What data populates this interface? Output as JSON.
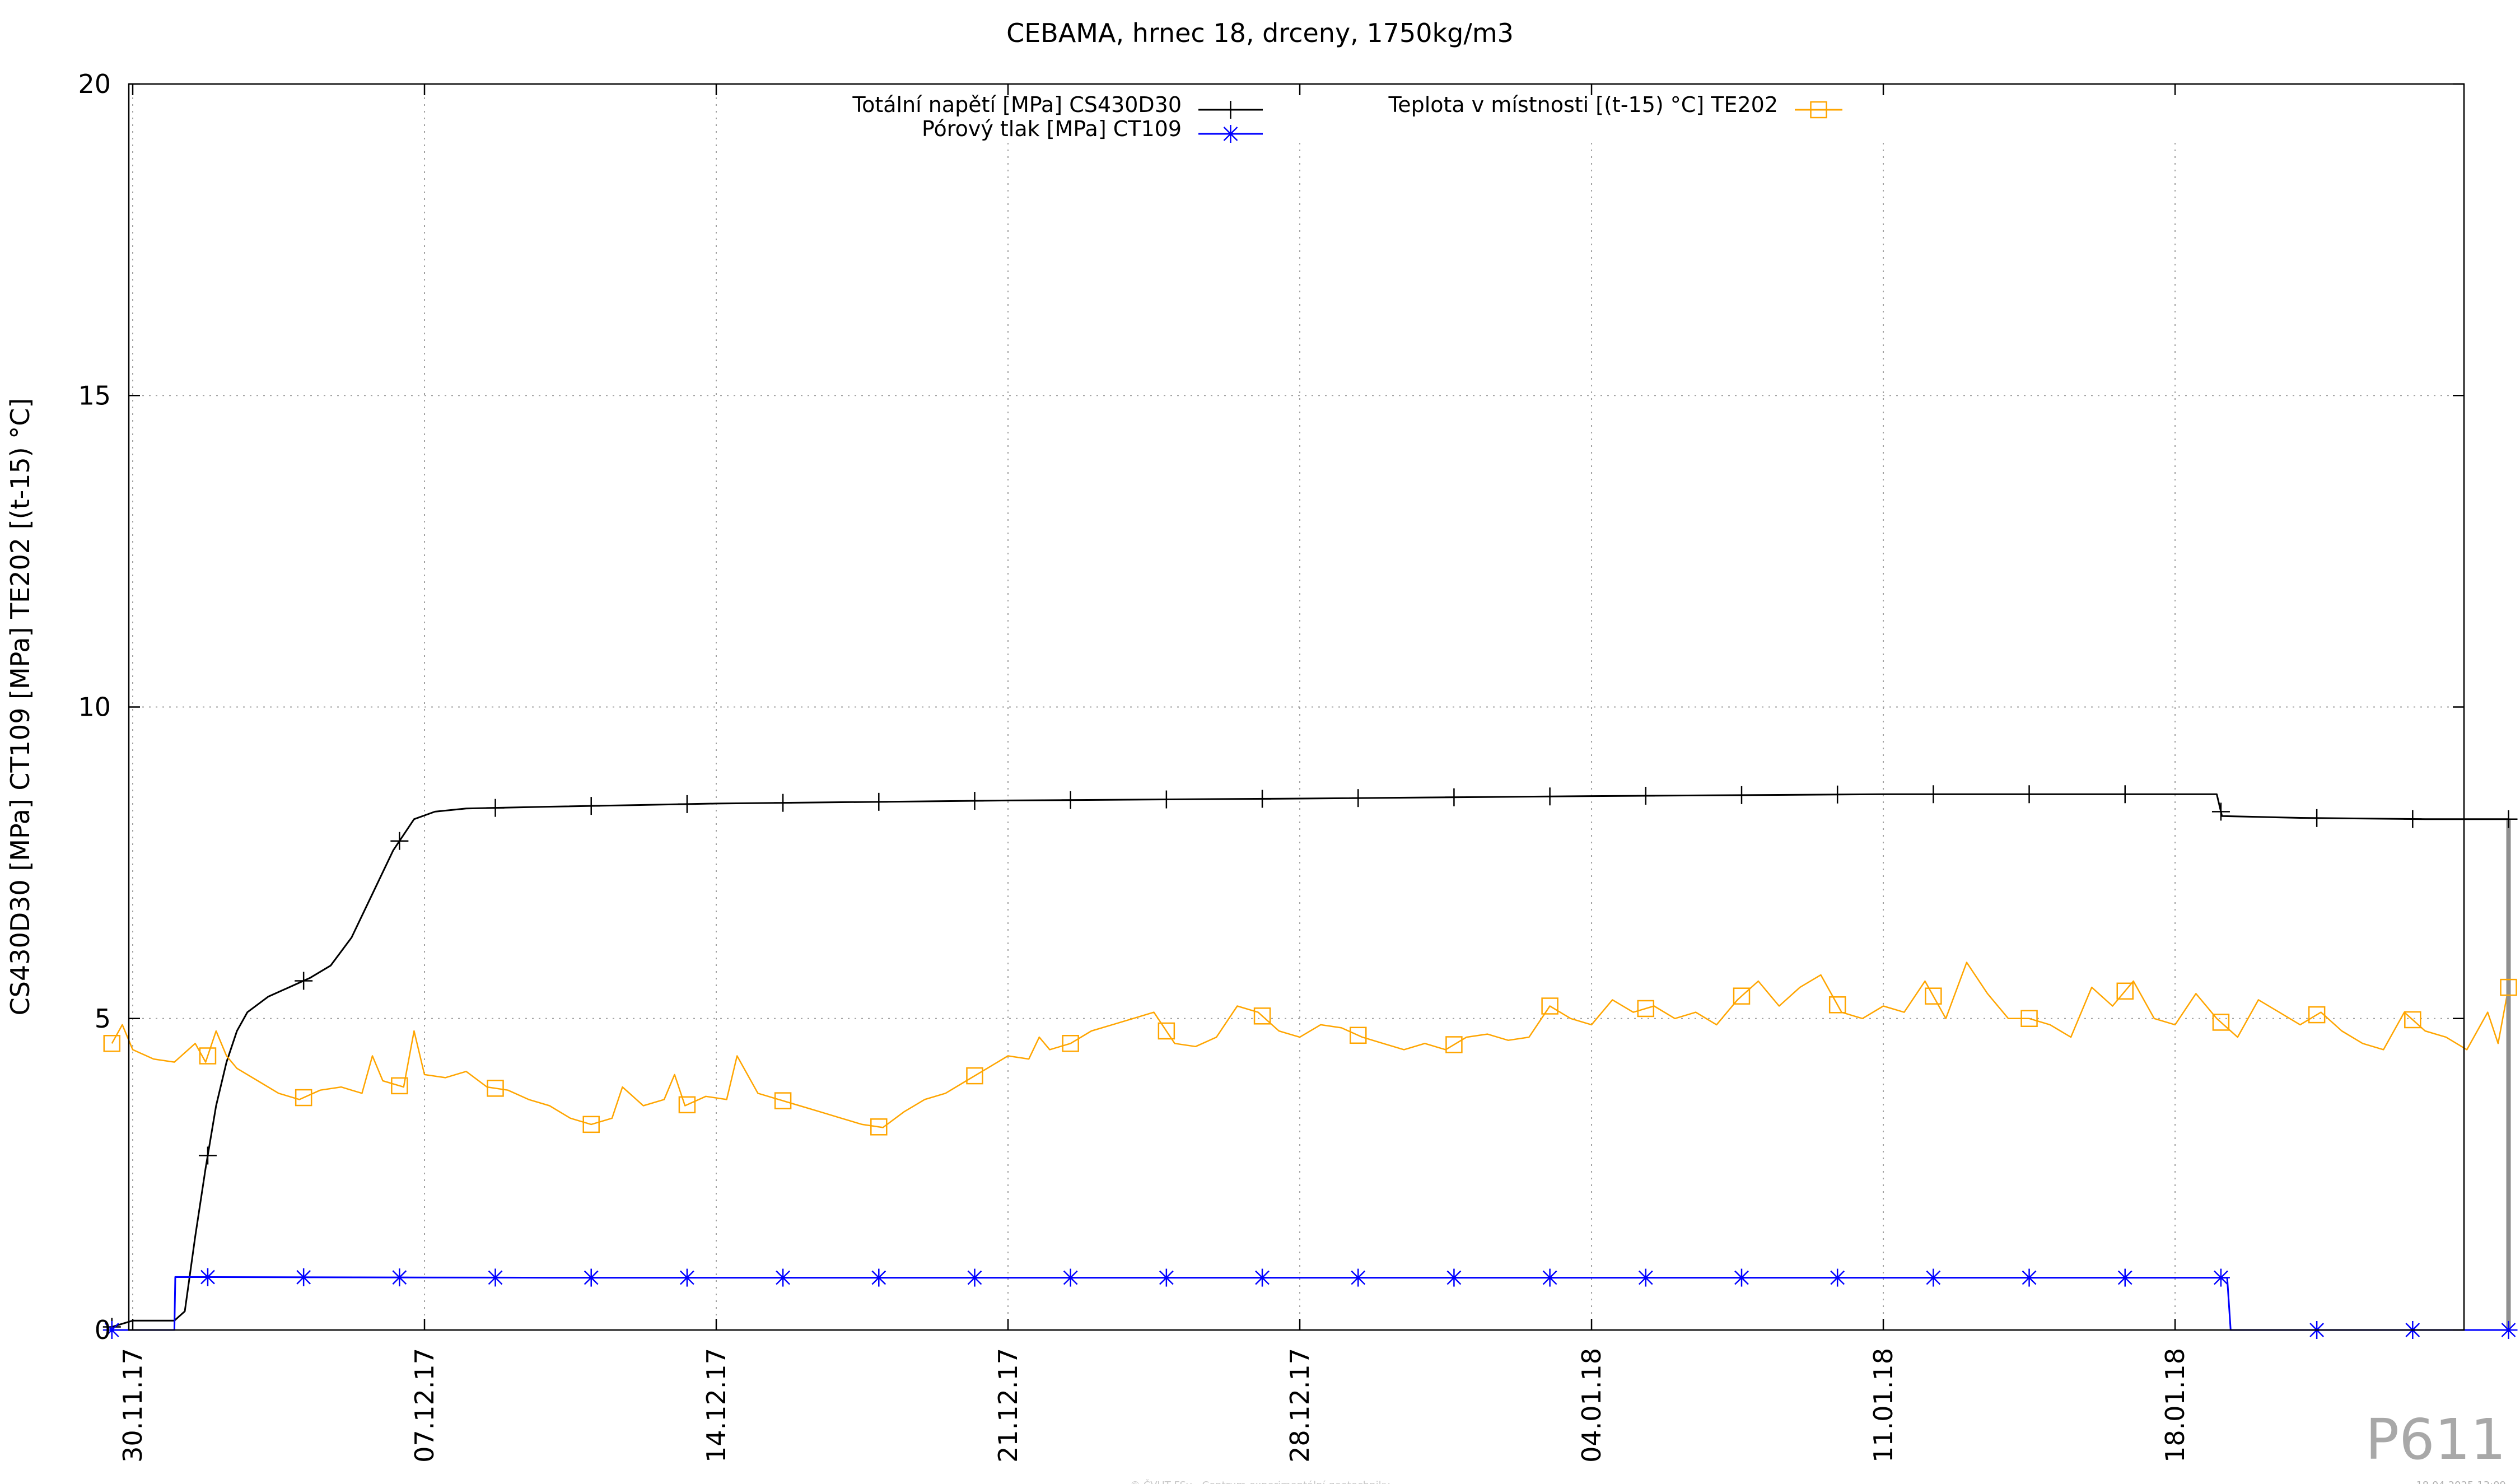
{
  "chart_data": {
    "type": "line",
    "title": "CEBAMA, hrnec 18, drceny, 1750kg/m3",
    "ylabel": "CS430D30 [MPa] CT109 [MPa] TE202 [(t-15) °C]",
    "xlabel": "",
    "ylim": [
      0,
      20
    ],
    "yticks": [
      0,
      5,
      10,
      15,
      20
    ],
    "xlim": [
      "2017-11-30",
      "2018-01-26"
    ],
    "xticks": [
      {
        "date": "2017-11-30",
        "label": "30.11.17"
      },
      {
        "date": "2017-12-07",
        "label": "07.12.17"
      },
      {
        "date": "2017-12-14",
        "label": "14.12.17"
      },
      {
        "date": "2017-12-21",
        "label": "21.12.17"
      },
      {
        "date": "2017-12-28",
        "label": "28.12.17"
      },
      {
        "date": "2018-01-04",
        "label": "04.01.18"
      },
      {
        "date": "2018-01-11",
        "label": "11.01.18"
      },
      {
        "date": "2018-01-18",
        "label": "18.01.18"
      }
    ],
    "grid": true,
    "legend_position": "top",
    "series": [
      {
        "name": "Totální napětí [MPa] CS430D30",
        "color": "#000000",
        "marker": "plus",
        "points": [
          [
            "2017-11-29T12:00",
            0.05
          ],
          [
            "2017-11-30T00:00",
            0.15
          ],
          [
            "2017-11-30T12:00",
            0.15
          ],
          [
            "2017-12-01T00:00",
            0.15
          ],
          [
            "2017-12-01T06:00",
            0.3
          ],
          [
            "2017-12-01T12:00",
            1.5
          ],
          [
            "2017-12-01T18:00",
            2.6
          ],
          [
            "2017-12-02T00:00",
            3.6
          ],
          [
            "2017-12-02T06:00",
            4.3
          ],
          [
            "2017-12-02T12:00",
            4.8
          ],
          [
            "2017-12-02T18:00",
            5.1
          ],
          [
            "2017-12-03T06:00",
            5.35
          ],
          [
            "2017-12-03T18:00",
            5.5
          ],
          [
            "2017-12-04T06:00",
            5.65
          ],
          [
            "2017-12-04T18:00",
            5.85
          ],
          [
            "2017-12-05T06:00",
            6.3
          ],
          [
            "2017-12-05T18:00",
            7.0
          ],
          [
            "2017-12-06T06:00",
            7.7
          ],
          [
            "2017-12-06T18:00",
            8.2
          ],
          [
            "2017-12-07T06:00",
            8.32
          ],
          [
            "2017-12-08T00:00",
            8.37
          ],
          [
            "2017-12-10T00:00",
            8.4
          ],
          [
            "2017-12-14T00:00",
            8.45
          ],
          [
            "2017-12-21T00:00",
            8.5
          ],
          [
            "2017-12-28T00:00",
            8.53
          ],
          [
            "2018-01-04T00:00",
            8.57
          ],
          [
            "2018-01-11T00:00",
            8.6
          ],
          [
            "2018-01-18T00:00",
            8.6
          ],
          [
            "2018-01-19T00:00",
            8.6
          ],
          [
            "2018-01-19T03:00",
            8.25
          ],
          [
            "2018-01-21T00:00",
            8.22
          ],
          [
            "2018-01-24T00:00",
            8.2
          ],
          [
            "2018-01-25T18:00",
            8.2
          ],
          [
            "2018-01-26T00:00",
            8.2
          ]
        ]
      },
      {
        "name": "Pórový tlak [MPa] CT109",
        "color": "#0000ff",
        "marker": "star",
        "points": [
          [
            "2017-11-29T12:00",
            0.0
          ],
          [
            "2017-12-01T00:00",
            0.0
          ],
          [
            "2017-12-01T00:30",
            0.85
          ],
          [
            "2017-12-10T00:00",
            0.84
          ],
          [
            "2017-12-25T00:00",
            0.84
          ],
          [
            "2018-01-10T00:00",
            0.84
          ],
          [
            "2018-01-19T06:00",
            0.84
          ],
          [
            "2018-01-19T08:00",
            0.0
          ],
          [
            "2018-01-26T00:00",
            0.0
          ]
        ]
      },
      {
        "name": "Teplota v místnosti [(t-15) °C] TE202",
        "color": "#ffa500",
        "marker": "square",
        "points": [
          [
            "2017-11-29T12:00",
            4.6
          ],
          [
            "2017-11-29T18:00",
            4.9
          ],
          [
            "2017-11-30T00:00",
            4.5
          ],
          [
            "2017-11-30T12:00",
            4.35
          ],
          [
            "2017-12-01T00:00",
            4.3
          ],
          [
            "2017-12-01T12:00",
            4.6
          ],
          [
            "2017-12-01T18:00",
            4.3
          ],
          [
            "2017-12-02T00:00",
            4.8
          ],
          [
            "2017-12-02T06:00",
            4.4
          ],
          [
            "2017-12-02T12:00",
            4.2
          ],
          [
            "2017-12-03T00:00",
            4.0
          ],
          [
            "2017-12-03T12:00",
            3.8
          ],
          [
            "2017-12-04T00:00",
            3.7
          ],
          [
            "2017-12-04T12:00",
            3.85
          ],
          [
            "2017-12-05T00:00",
            3.9
          ],
          [
            "2017-12-05T12:00",
            3.8
          ],
          [
            "2017-12-05T18:00",
            4.4
          ],
          [
            "2017-12-06T00:00",
            4.0
          ],
          [
            "2017-12-06T12:00",
            3.9
          ],
          [
            "2017-12-06T18:00",
            4.8
          ],
          [
            "2017-12-07T00:00",
            4.1
          ],
          [
            "2017-12-07T12:00",
            4.05
          ],
          [
            "2017-12-08T00:00",
            4.15
          ],
          [
            "2017-12-08T12:00",
            3.9
          ],
          [
            "2017-12-09T00:00",
            3.85
          ],
          [
            "2017-12-09T12:00",
            3.7
          ],
          [
            "2017-12-10T00:00",
            3.6
          ],
          [
            "2017-12-10T12:00",
            3.4
          ],
          [
            "2017-12-11T00:00",
            3.3
          ],
          [
            "2017-12-11T12:00",
            3.4
          ],
          [
            "2017-12-11T18:00",
            3.9
          ],
          [
            "2017-12-12T06:00",
            3.6
          ],
          [
            "2017-12-12T18:00",
            3.7
          ],
          [
            "2017-12-13T00:00",
            4.1
          ],
          [
            "2017-12-13T06:00",
            3.6
          ],
          [
            "2017-12-13T18:00",
            3.75
          ],
          [
            "2017-12-14T06:00",
            3.7
          ],
          [
            "2017-12-14T12:00",
            4.4
          ],
          [
            "2017-12-15T00:00",
            3.8
          ],
          [
            "2017-12-15T12:00",
            3.7
          ],
          [
            "2017-12-16T00:00",
            3.6
          ],
          [
            "2017-12-16T12:00",
            3.5
          ],
          [
            "2017-12-17T00:00",
            3.4
          ],
          [
            "2017-12-17T12:00",
            3.3
          ],
          [
            "2017-12-18T00:00",
            3.25
          ],
          [
            "2017-12-18T12:00",
            3.5
          ],
          [
            "2017-12-19T00:00",
            3.7
          ],
          [
            "2017-12-19T12:00",
            3.8
          ],
          [
            "2017-12-20T00:00",
            4.0
          ],
          [
            "2017-12-20T12:00",
            4.2
          ],
          [
            "2017-12-21T00:00",
            4.4
          ],
          [
            "2017-12-21T12:00",
            4.35
          ],
          [
            "2017-12-21T18:00",
            4.7
          ],
          [
            "2017-12-22T00:00",
            4.5
          ],
          [
            "2017-12-22T12:00",
            4.6
          ],
          [
            "2017-12-23T00:00",
            4.8
          ],
          [
            "2017-12-23T12:00",
            4.9
          ],
          [
            "2017-12-24T00:00",
            5.0
          ],
          [
            "2017-12-24T12:00",
            5.1
          ],
          [
            "2017-12-25T00:00",
            4.6
          ],
          [
            "2017-12-25T12:00",
            4.55
          ],
          [
            "2017-12-26T00:00",
            4.7
          ],
          [
            "2017-12-26T12:00",
            5.2
          ],
          [
            "2017-12-27T00:00",
            5.1
          ],
          [
            "2017-12-27T12:00",
            4.8
          ],
          [
            "2017-12-28T00:00",
            4.7
          ],
          [
            "2017-12-28T12:00",
            4.9
          ],
          [
            "2017-12-29T00:00",
            4.85
          ],
          [
            "2017-12-29T12:00",
            4.7
          ],
          [
            "2017-12-30T00:00",
            4.6
          ],
          [
            "2017-12-30T12:00",
            4.5
          ],
          [
            "2017-12-31T00:00",
            4.6
          ],
          [
            "2017-12-31T12:00",
            4.5
          ],
          [
            "2018-01-01T00:00",
            4.7
          ],
          [
            "2018-01-01T12:00",
            4.75
          ],
          [
            "2018-01-02T00:00",
            4.65
          ],
          [
            "2018-01-02T12:00",
            4.7
          ],
          [
            "2018-01-03T00:00",
            5.2
          ],
          [
            "2018-01-03T12:00",
            5.0
          ],
          [
            "2018-01-04T00:00",
            4.9
          ],
          [
            "2018-01-04T12:00",
            5.3
          ],
          [
            "2018-01-05T00:00",
            5.1
          ],
          [
            "2018-01-05T12:00",
            5.2
          ],
          [
            "2018-01-06T00:00",
            5.0
          ],
          [
            "2018-01-06T12:00",
            5.1
          ],
          [
            "2018-01-07T00:00",
            4.9
          ],
          [
            "2018-01-07T12:00",
            5.3
          ],
          [
            "2018-01-08T00:00",
            5.6
          ],
          [
            "2018-01-08T12:00",
            5.2
          ],
          [
            "2018-01-09T00:00",
            5.5
          ],
          [
            "2018-01-09T12:00",
            5.7
          ],
          [
            "2018-01-10T00:00",
            5.1
          ],
          [
            "2018-01-10T12:00",
            5.0
          ],
          [
            "2018-01-11T00:00",
            5.2
          ],
          [
            "2018-01-11T12:00",
            5.1
          ],
          [
            "2018-01-12T00:00",
            5.6
          ],
          [
            "2018-01-12T12:00",
            5.0
          ],
          [
            "2018-01-13T00:00",
            5.9
          ],
          [
            "2018-01-13T12:00",
            5.4
          ],
          [
            "2018-01-14T00:00",
            5.0
          ],
          [
            "2018-01-14T12:00",
            5.0
          ],
          [
            "2018-01-15T00:00",
            4.9
          ],
          [
            "2018-01-15T12:00",
            4.7
          ],
          [
            "2018-01-16T00:00",
            5.5
          ],
          [
            "2018-01-16T12:00",
            5.2
          ],
          [
            "2018-01-17T00:00",
            5.6
          ],
          [
            "2018-01-17T12:00",
            5.0
          ],
          [
            "2018-01-18T00:00",
            4.9
          ],
          [
            "2018-01-18T12:00",
            5.4
          ],
          [
            "2018-01-19T00:00",
            5.0
          ],
          [
            "2018-01-19T12:00",
            4.7
          ],
          [
            "2018-01-20T00:00",
            5.3
          ],
          [
            "2018-01-20T12:00",
            5.1
          ],
          [
            "2018-01-21T00:00",
            4.9
          ],
          [
            "2018-01-21T12:00",
            5.1
          ],
          [
            "2018-01-22T00:00",
            4.8
          ],
          [
            "2018-01-22T12:00",
            4.6
          ],
          [
            "2018-01-23T00:00",
            4.5
          ],
          [
            "2018-01-23T12:00",
            5.1
          ],
          [
            "2018-01-24T00:00",
            4.8
          ],
          [
            "2018-01-24T12:00",
            4.7
          ],
          [
            "2018-01-25T00:00",
            4.5
          ],
          [
            "2018-01-25T12:00",
            5.1
          ],
          [
            "2018-01-25T18:00",
            4.6
          ],
          [
            "2018-01-26T00:00",
            5.5
          ]
        ]
      }
    ]
  },
  "watermark": "P611",
  "footer_left": "© ČVUT FSv - Centrum experimentální geotechniky",
  "footer_right": "18.04.2025 13:09"
}
